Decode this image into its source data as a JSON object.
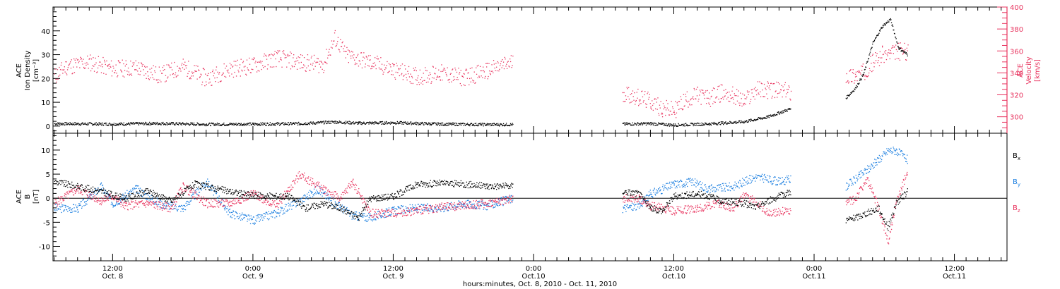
{
  "colors": {
    "black": "#000000",
    "pink": "#e8335e",
    "blue": "#1c7fe0"
  },
  "top_panel": {
    "left_label": [
      "ACE",
      "Ion Density",
      "[cm⁻³]"
    ],
    "right_label": [
      "ACE",
      "Velocity",
      "[km/s]"
    ]
  },
  "bottom_panel": {
    "left_label": [
      "ACE",
      "B",
      "[nT]"
    ],
    "legend": [
      {
        "name": "B",
        "sub": "x",
        "color": "#000000"
      },
      {
        "name": "B",
        "sub": "y",
        "color": "#1c7fe0"
      },
      {
        "name": "B",
        "sub": "z",
        "color": "#e8335e"
      }
    ]
  },
  "x_axis": {
    "title": "hours:minutes, Oct.  8, 2010 - Oct. 11, 2010",
    "ticks": [
      {
        "t": 12,
        "time": "12:00",
        "date": "Oct. 8"
      },
      {
        "t": 24,
        "time": "0:00",
        "date": "Oct. 9"
      },
      {
        "t": 36,
        "time": "12:00",
        "date": "Oct. 9"
      },
      {
        "t": 48,
        "time": "0:00",
        "date": "Oct.10"
      },
      {
        "t": 60,
        "time": "12:00",
        "date": "Oct.10"
      },
      {
        "t": 72,
        "time": "0:00",
        "date": "Oct.11"
      },
      {
        "t": 84,
        "time": "12:00",
        "date": "Oct.11"
      }
    ]
  },
  "chart_data": [
    {
      "type": "scatter",
      "panel": "top",
      "x_unit": "hours since Oct. 8 2010 00:00",
      "xlim": [
        6.9,
        88.5
      ],
      "ylim_left": [
        -3,
        50
      ],
      "yticks_left": [
        0,
        10,
        20,
        30,
        40
      ],
      "ylim_right": [
        285,
        400
      ],
      "yticks_right": [
        300,
        320,
        340,
        360,
        380,
        400
      ],
      "series": [
        {
          "name": "Ion Density",
          "axis": "left",
          "color": "#000000",
          "points": [
            [
              7,
              1.2
            ],
            [
              12,
              1.0
            ],
            [
              16,
              1.3
            ],
            [
              20,
              0.9
            ],
            [
              24,
              1.0
            ],
            [
              28,
              1.2
            ],
            [
              31,
              1.9
            ],
            [
              33,
              1.4
            ],
            [
              36,
              1.6
            ],
            [
              40,
              1.0
            ],
            [
              44,
              0.8
            ],
            [
              46.2,
              0.8
            ],
            [
              55.5,
              null
            ],
            [
              55.6,
              1.0
            ],
            [
              58,
              1.2
            ],
            [
              60,
              0.6
            ],
            [
              63,
              1.1
            ],
            [
              66,
              2.0
            ],
            [
              68,
              4.0
            ],
            [
              70,
              7.5
            ],
            [
              74.5,
              null
            ],
            [
              74.7,
              12
            ],
            [
              75.5,
              16
            ],
            [
              76.2,
              22
            ],
            [
              77,
              35
            ],
            [
              77.8,
              42
            ],
            [
              78.5,
              45
            ],
            [
              79.2,
              33
            ],
            [
              80,
              30
            ]
          ]
        },
        {
          "name": "Velocity",
          "axis": "right",
          "color": "#e8335e",
          "points": [
            [
              7,
              337
            ],
            [
              8,
              346
            ],
            [
              10,
              350
            ],
            [
              12,
              344
            ],
            [
              14,
              345
            ],
            [
              16,
              338
            ],
            [
              18,
              346
            ],
            [
              20,
              335
            ],
            [
              22,
              344
            ],
            [
              24,
              347
            ],
            [
              26,
              354
            ],
            [
              28,
              350
            ],
            [
              30,
              348
            ],
            [
              31,
              372
            ],
            [
              32,
              356
            ],
            [
              34,
              350
            ],
            [
              36,
              343
            ],
            [
              38,
              337
            ],
            [
              40,
              340
            ],
            [
              42,
              336
            ],
            [
              44,
              342
            ],
            [
              46.2,
              350
            ],
            [
              55.5,
              null
            ],
            [
              55.6,
              322
            ],
            [
              57,
              318
            ],
            [
              58,
              314
            ],
            [
              59,
              308
            ],
            [
              60,
              306
            ],
            [
              61,
              316
            ],
            [
              62,
              320
            ],
            [
              63,
              317
            ],
            [
              64,
              322
            ],
            [
              65,
              320
            ],
            [
              66,
              314
            ],
            [
              67,
              325
            ],
            [
              68,
              325
            ],
            [
              70,
              323
            ],
            [
              74.5,
              null
            ],
            [
              74.7,
              337
            ],
            [
              75.5,
              338
            ],
            [
              76.2,
              341
            ],
            [
              77,
              350
            ],
            [
              77.8,
              357
            ],
            [
              78.5,
              357
            ],
            [
              79.2,
              360
            ],
            [
              80,
              360
            ]
          ]
        }
      ]
    },
    {
      "type": "scatter",
      "panel": "bottom",
      "x_unit": "hours since Oct. 8 2010 00:00",
      "xlim": [
        6.9,
        88.5
      ],
      "ylim": [
        -13,
        13.5
      ],
      "yticks": [
        -10,
        -5,
        0,
        5,
        10
      ],
      "series": [
        {
          "name": "Bx",
          "color": "#000000",
          "points": [
            [
              7,
              3.5
            ],
            [
              9,
              2.5
            ],
            [
              11,
              1.5
            ],
            [
              13,
              0.0
            ],
            [
              15,
              1.5
            ],
            [
              17,
              -0.5
            ],
            [
              19,
              3
            ],
            [
              21,
              2
            ],
            [
              23,
              1.0
            ],
            [
              25,
              0.5
            ],
            [
              27,
              0.5
            ],
            [
              28.5,
              -2
            ],
            [
              30,
              -1
            ],
            [
              31.5,
              -2
            ],
            [
              33,
              -4
            ],
            [
              34,
              0
            ],
            [
              36,
              0.5
            ],
            [
              38,
              3
            ],
            [
              40,
              3.2
            ],
            [
              42,
              3
            ],
            [
              44,
              2.6
            ],
            [
              46.2,
              2.6
            ],
            [
              55.5,
              null
            ],
            [
              55.6,
              1.5
            ],
            [
              57,
              1.0
            ],
            [
              58,
              -2
            ],
            [
              59,
              -2.5
            ],
            [
              60,
              0.5
            ],
            [
              62,
              1.0
            ],
            [
              63,
              0.5
            ],
            [
              64,
              -0.5
            ],
            [
              66,
              -1.0
            ],
            [
              67,
              -1.8
            ],
            [
              68,
              -0.5
            ],
            [
              70,
              1.5
            ],
            [
              74.5,
              null
            ],
            [
              74.7,
              -4.5
            ],
            [
              75.5,
              -4
            ],
            [
              76.5,
              -3
            ],
            [
              77.5,
              -2
            ],
            [
              78.3,
              -6
            ],
            [
              79,
              -1
            ],
            [
              80,
              1.5
            ]
          ]
        },
        {
          "name": "By",
          "color": "#1c7fe0",
          "points": [
            [
              7,
              -2
            ],
            [
              9,
              -2
            ],
            [
              11,
              2.5
            ],
            [
              12,
              -1
            ],
            [
              14,
              2
            ],
            [
              16,
              -1
            ],
            [
              18,
              -2
            ],
            [
              20,
              3.5
            ],
            [
              22,
              -3
            ],
            [
              24,
              -4.5
            ],
            [
              26,
              -3
            ],
            [
              28,
              -0.5
            ],
            [
              29.5,
              2
            ],
            [
              31,
              -1
            ],
            [
              32.5,
              -3.5
            ],
            [
              34,
              -4
            ],
            [
              36,
              -2.5
            ],
            [
              38,
              -2
            ],
            [
              40,
              -2
            ],
            [
              42,
              -1
            ],
            [
              44,
              -1.5
            ],
            [
              46.2,
              0
            ],
            [
              55.5,
              null
            ],
            [
              55.6,
              -2
            ],
            [
              57,
              -1.5
            ],
            [
              58,
              1
            ],
            [
              60,
              3
            ],
            [
              61.5,
              3.5
            ],
            [
              63,
              2
            ],
            [
              65,
              2.5
            ],
            [
              67,
              4.5
            ],
            [
              69,
              3.5
            ],
            [
              70,
              4
            ],
            [
              74.5,
              null
            ],
            [
              74.7,
              2.5
            ],
            [
              75.5,
              4
            ],
            [
              76.5,
              6
            ],
            [
              77.5,
              8
            ],
            [
              78.3,
              10
            ],
            [
              79,
              10
            ],
            [
              80,
              8
            ]
          ]
        },
        {
          "name": "Bz",
          "color": "#e8335e",
          "points": [
            [
              7,
              -1
            ],
            [
              9,
              2
            ],
            [
              11,
              -0.5
            ],
            [
              12,
              0.5
            ],
            [
              13,
              -1.5
            ],
            [
              15,
              -1
            ],
            [
              17,
              -2
            ],
            [
              18,
              2.5
            ],
            [
              20,
              -1
            ],
            [
              22,
              -1
            ],
            [
              24,
              1
            ],
            [
              26,
              -1.5
            ],
            [
              28,
              5
            ],
            [
              30,
              2
            ],
            [
              31.5,
              0
            ],
            [
              32.5,
              3.5
            ],
            [
              34,
              -3
            ],
            [
              36,
              -3
            ],
            [
              38,
              -2.5
            ],
            [
              40,
              -1.8
            ],
            [
              42,
              -1.5
            ],
            [
              44,
              -1
            ],
            [
              46.2,
              0
            ],
            [
              55.5,
              null
            ],
            [
              55.6,
              0
            ],
            [
              57,
              0
            ],
            [
              58,
              -1.5
            ],
            [
              60,
              -2.5
            ],
            [
              62,
              -2
            ],
            [
              64,
              -1
            ],
            [
              65,
              -2
            ],
            [
              66,
              0.5
            ],
            [
              67,
              -0.5
            ],
            [
              68,
              -3
            ],
            [
              70,
              -2.5
            ],
            [
              74.5,
              null
            ],
            [
              74.7,
              -1.0
            ],
            [
              75.5,
              0
            ],
            [
              76.5,
              4
            ],
            [
              77.5,
              -2
            ],
            [
              78.3,
              -9
            ],
            [
              79,
              -1
            ],
            [
              80,
              6
            ]
          ]
        }
      ]
    }
  ]
}
